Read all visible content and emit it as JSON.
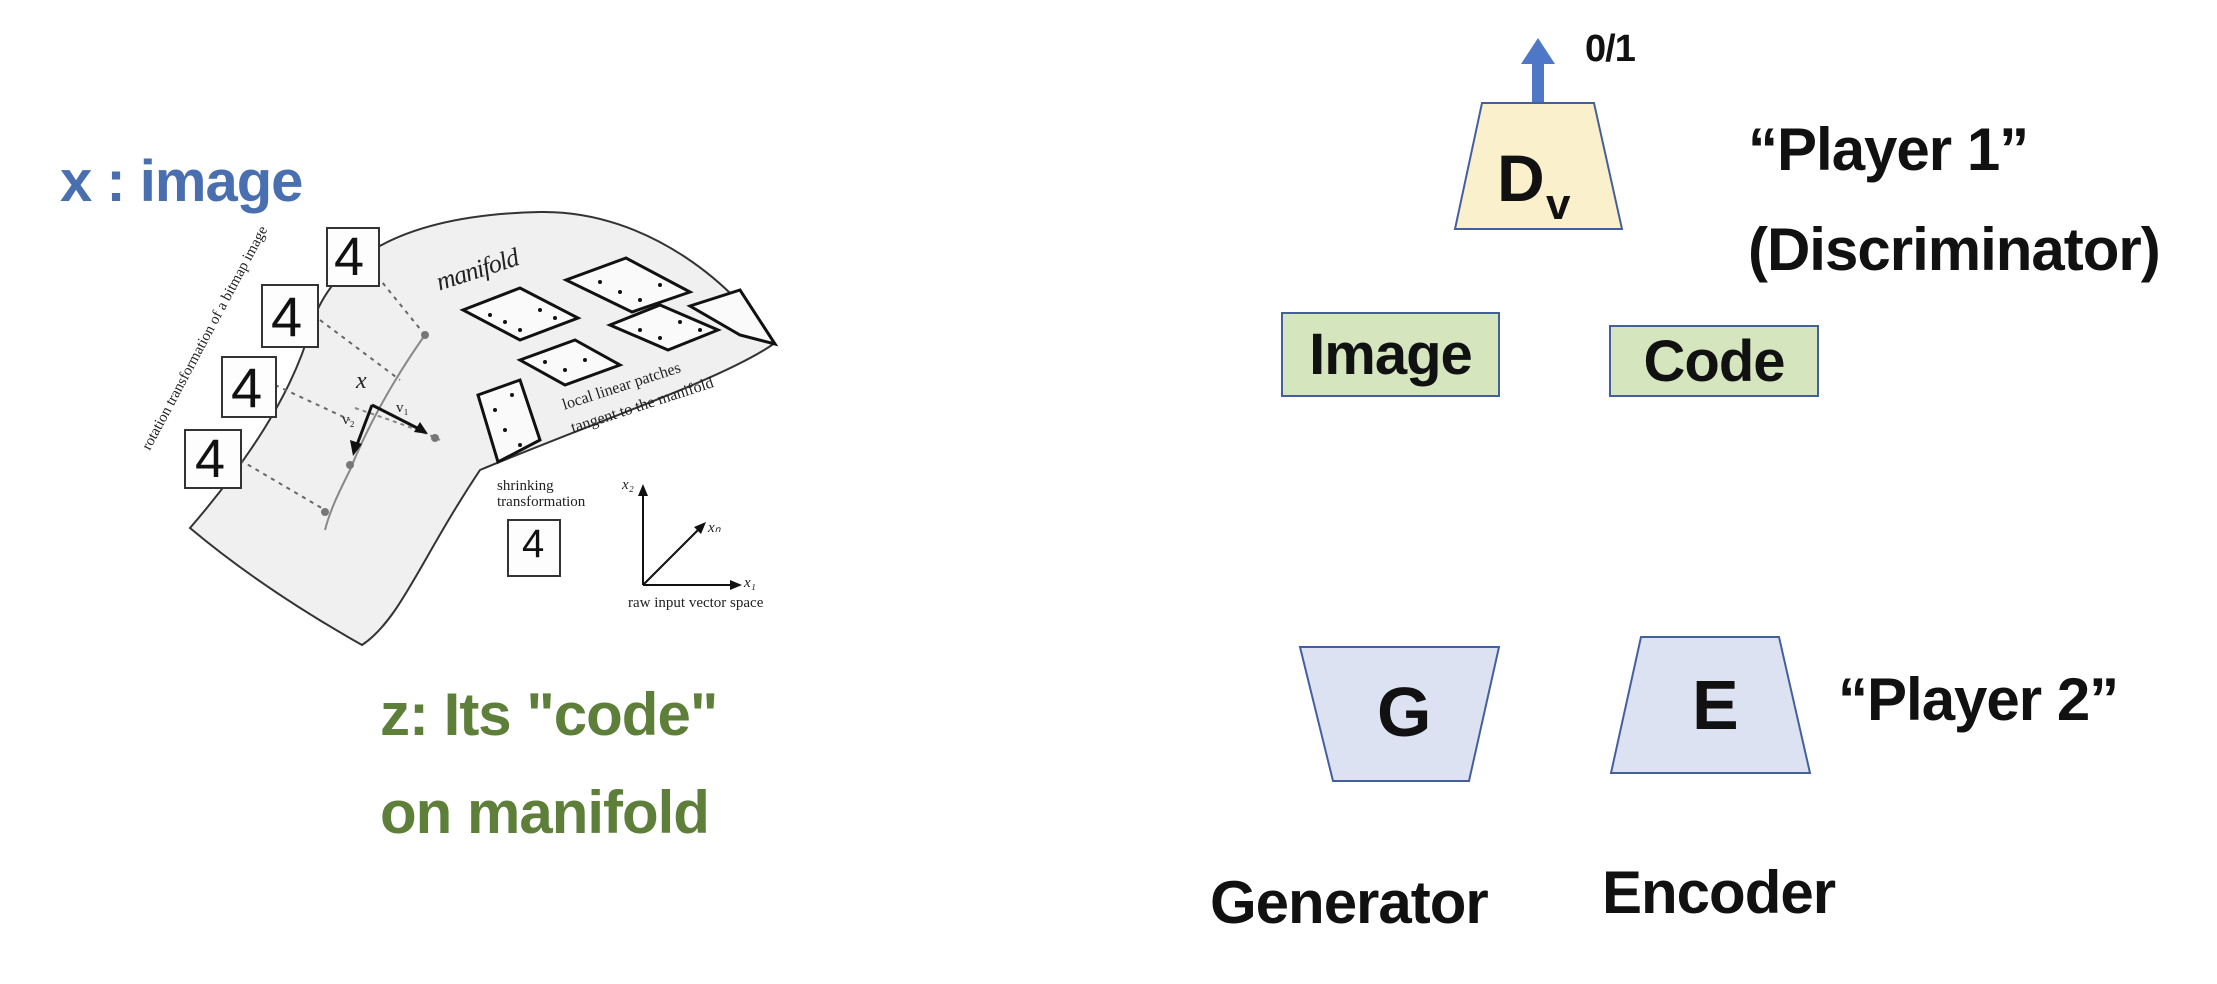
{
  "left": {
    "x_label": "x : image",
    "z_label_line1": "z: Its \"code\"",
    "z_label_line2": "on manifold",
    "colors": {
      "x_label": "#4a6fb1",
      "z_label": "#5e7f3a"
    },
    "figure": {
      "manifold_label": "manifold",
      "rotation_label": "rotation transformation of a bitmap image",
      "patches_label_line1": "local linear patches",
      "patches_label_line2": "tangent to the manifold",
      "shrinking_label_line1": "shrinking",
      "shrinking_label_line2": "transformation",
      "raw_space_label": "raw input vector space",
      "point_label": "x",
      "v1_label": "v₁",
      "v2_label": "v₂",
      "axis_x1": "x₁",
      "axis_x2": "x₂",
      "axis_xn": "xₙ",
      "digit": "4"
    }
  },
  "right": {
    "output_label": "0/1",
    "discriminator_letter": "D",
    "discriminator_subscript": "v",
    "player1_line1": "“Player 1”",
    "player1_line2": "(Discriminator)",
    "image_box_label": "Image",
    "code_box_label": "Code",
    "generator_letter": "G",
    "encoder_letter": "E",
    "player2_label": "“Player 2”",
    "generator_caption": "Generator",
    "encoder_caption": "Encoder",
    "colors": {
      "discriminator_fill": "#fbf0cc",
      "box_fill": "#d5e6bf",
      "trapezoid_fill": "#dce2f1",
      "border": "#44609c",
      "arrow": "#4f77c7"
    }
  }
}
